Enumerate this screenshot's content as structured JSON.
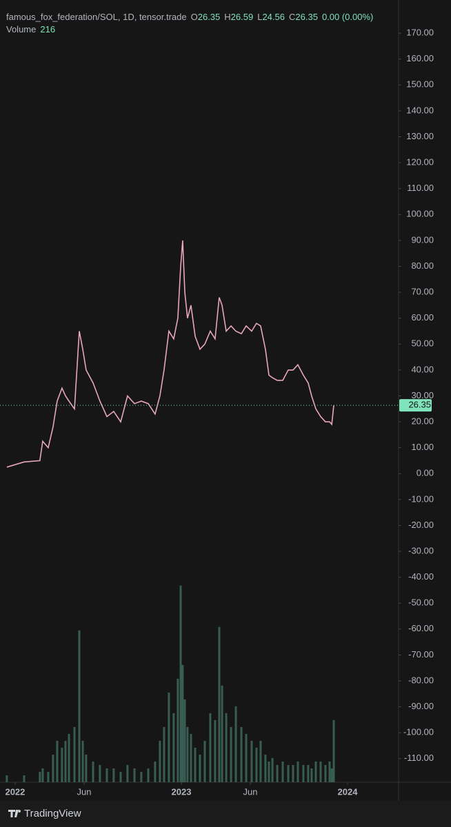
{
  "chart_data": {
    "type": "line",
    "legend": {
      "symbol": "famous_fox_federation/SOL, 1D, tensor.trade",
      "open": {
        "label": "O",
        "value": 26.35
      },
      "high": {
        "label": "H",
        "value": 26.59
      },
      "low": {
        "label": "L",
        "value": 24.56
      },
      "close": {
        "label": "C",
        "value": 26.35
      },
      "change": "0.00 (0.00%)",
      "volume_label": "Volume",
      "volume_value": 216
    },
    "x": [
      2021.95,
      2022.054,
      2022.149,
      2022.166,
      2022.199,
      2022.228,
      2022.253,
      2022.282,
      2022.303,
      2022.324,
      2022.357,
      2022.386,
      2022.407,
      2022.427,
      2022.469,
      2022.51,
      2022.552,
      2022.593,
      2022.635,
      2022.676,
      2022.718,
      2022.759,
      2022.801,
      2022.842,
      2022.871,
      2022.896,
      2022.925,
      2022.954,
      2022.979,
      2022.996,
      2023.008,
      2023.021,
      2023.037,
      2023.058,
      2023.083,
      2023.112,
      2023.141,
      2023.174,
      2023.203,
      2023.228,
      2023.245,
      2023.27,
      2023.299,
      2023.328,
      2023.361,
      2023.39,
      2023.423,
      2023.452,
      2023.477,
      2023.506,
      2023.527,
      2023.548,
      2023.577,
      2023.61,
      2023.643,
      2023.672,
      2023.701,
      2023.734,
      2023.763,
      2023.784,
      2023.809,
      2023.838,
      2023.867,
      2023.892,
      2023.905,
      2023.917
    ],
    "series": [
      {
        "name": "famous_fox_federation/SOL",
        "color": "#e8a7ba",
        "values": [
          2.5,
          4.5,
          5,
          12.5,
          10,
          18,
          28,
          33,
          30,
          28,
          25,
          55,
          48,
          40,
          35,
          28,
          22,
          24,
          20,
          30,
          27,
          28,
          27,
          23,
          30,
          40,
          55,
          52,
          60,
          80,
          90,
          70,
          60,
          65,
          53,
          48,
          50,
          55,
          52,
          68,
          65,
          55,
          57,
          55,
          54,
          57,
          55,
          58,
          57,
          48,
          38,
          37,
          36,
          36,
          40,
          40,
          42,
          38,
          35,
          30,
          25,
          22,
          20,
          20,
          19,
          26.35
        ]
      },
      {
        "name": "Volume",
        "color": "#3e6a5d",
        "axis": "y2",
        "values": [
          24,
          24,
          36,
          48,
          36,
          96,
          144,
          120,
          144,
          168,
          192,
          528,
          144,
          96,
          72,
          60,
          48,
          48,
          36,
          60,
          48,
          36,
          48,
          72,
          144,
          192,
          312,
          240,
          360,
          684,
          408,
          288,
          192,
          168,
          120,
          96,
          144,
          240,
          216,
          540,
          336,
          240,
          192,
          264,
          192,
          168,
          144,
          120,
          144,
          96,
          72,
          84,
          60,
          72,
          60,
          60,
          72,
          60,
          60,
          48,
          72,
          72,
          60,
          72,
          48,
          216
        ]
      }
    ],
    "last_price_color": "#7fe3bb",
    "xlim": [
      2021.909,
      2024.307
    ],
    "xticks": [
      {
        "value": 2022,
        "label": "2022"
      },
      {
        "value": 2022.415,
        "label": "Jun"
      },
      {
        "value": 2023,
        "label": "2023"
      },
      {
        "value": 2023.415,
        "label": "Jun"
      },
      {
        "value": 2024,
        "label": "2024"
      }
    ],
    "ylim": [
      -119.1,
      182.8
    ],
    "y2lim": [
      0,
      700
    ],
    "yticks": [
      {
        "value": 170,
        "label": "170.00"
      },
      {
        "value": 160,
        "label": "160.00"
      },
      {
        "value": 150,
        "label": "150.00"
      },
      {
        "value": 140,
        "label": "140.00"
      },
      {
        "value": 130,
        "label": "130.00"
      },
      {
        "value": 120,
        "label": "120.00"
      },
      {
        "value": 110,
        "label": "110.00"
      },
      {
        "value": 100,
        "label": "100.00"
      },
      {
        "value": 90,
        "label": "90.00"
      },
      {
        "value": 80,
        "label": "80.00"
      },
      {
        "value": 70,
        "label": "70.00"
      },
      {
        "value": 60,
        "label": "60.00"
      },
      {
        "value": 50,
        "label": "50.00"
      },
      {
        "value": 40,
        "label": "40.00"
      },
      {
        "value": 30,
        "label": "30.00"
      },
      {
        "value": 20,
        "label": "20.00"
      },
      {
        "value": 10,
        "label": "10.00"
      },
      {
        "value": 0,
        "label": "0.00"
      },
      {
        "value": -10,
        "label": "-10.00"
      },
      {
        "value": -20,
        "label": "-20.00"
      },
      {
        "value": -30,
        "label": "-30.00"
      },
      {
        "value": -40,
        "label": "-40.00"
      },
      {
        "value": -50,
        "label": "-50.00"
      },
      {
        "value": -60,
        "label": "-60.00"
      },
      {
        "value": -70,
        "label": "-70.00"
      },
      {
        "value": -80,
        "label": "-80.00"
      },
      {
        "value": -90,
        "label": "-90.00"
      },
      {
        "value": -100,
        "label": "-100.00"
      },
      {
        "value": -110,
        "label": "-110.00"
      }
    ],
    "branding": "TradingView"
  }
}
